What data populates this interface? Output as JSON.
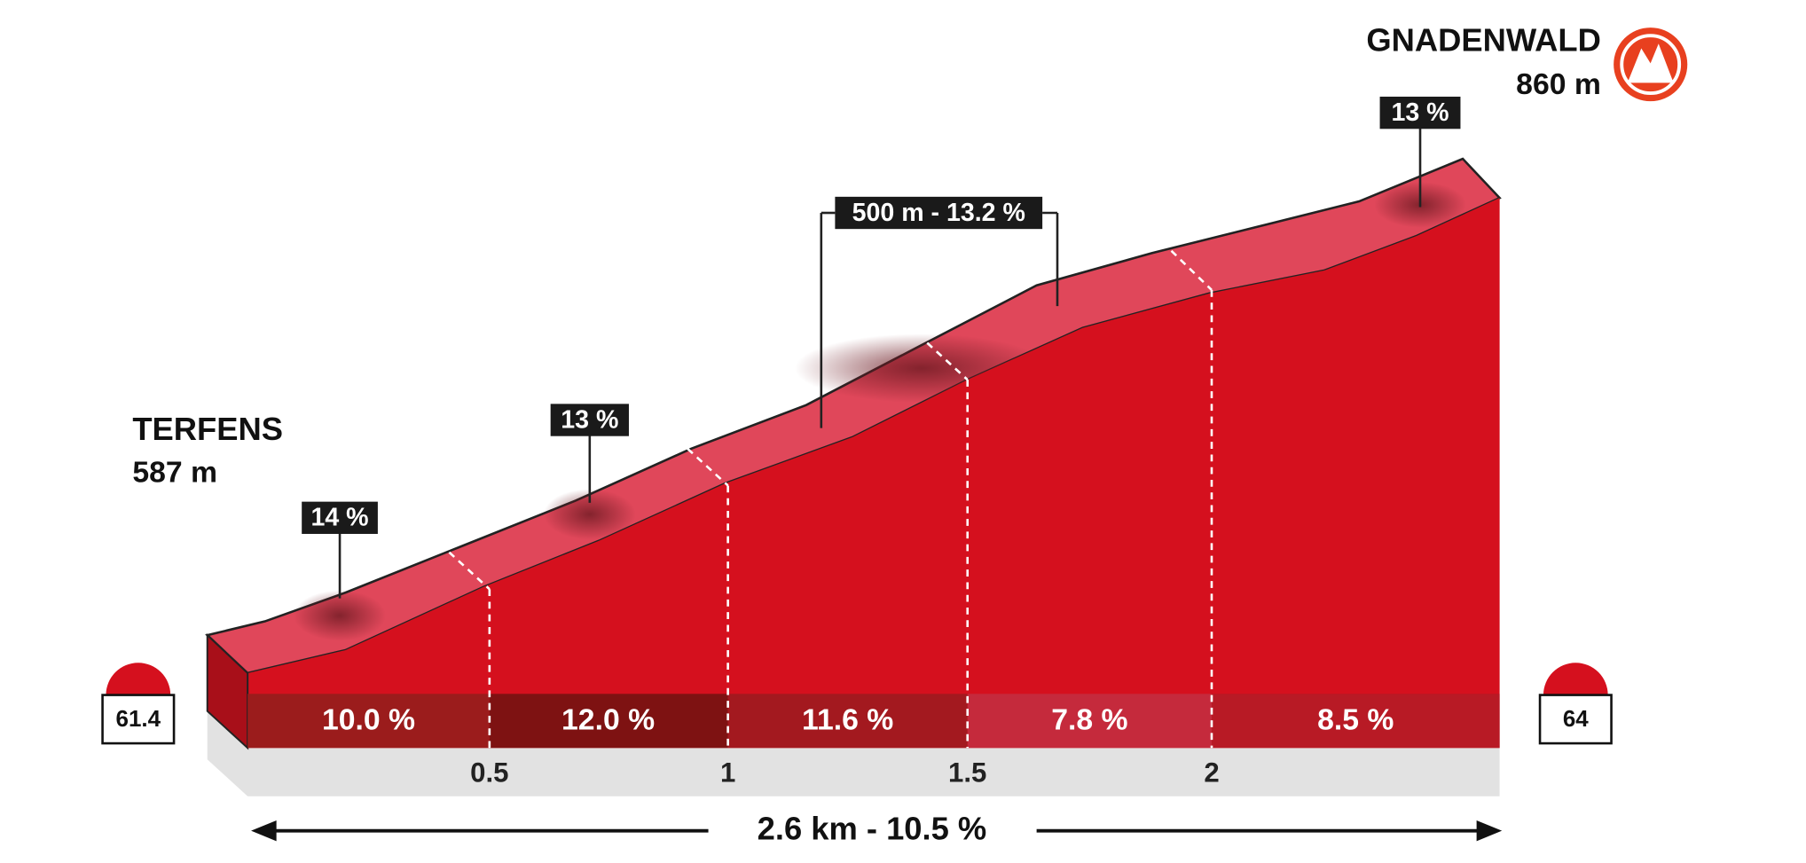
{
  "start": {
    "name": "TERFENS",
    "altitude": "587 m",
    "km": "61.4"
  },
  "finish": {
    "name": "GNADENWALD",
    "altitude": "860 m",
    "km": "64"
  },
  "peaks": [
    "14 %",
    "13 %",
    "500 m - 13.2 %",
    "13 %"
  ],
  "segments": [
    "10.0 %",
    "12.0 %",
    "11.6 %",
    "7.8 %",
    "8.5 %"
  ],
  "distance_marks": [
    "0.5",
    "1",
    "1.5",
    "2"
  ],
  "summary": "2.6 km - 10.5 %"
}
